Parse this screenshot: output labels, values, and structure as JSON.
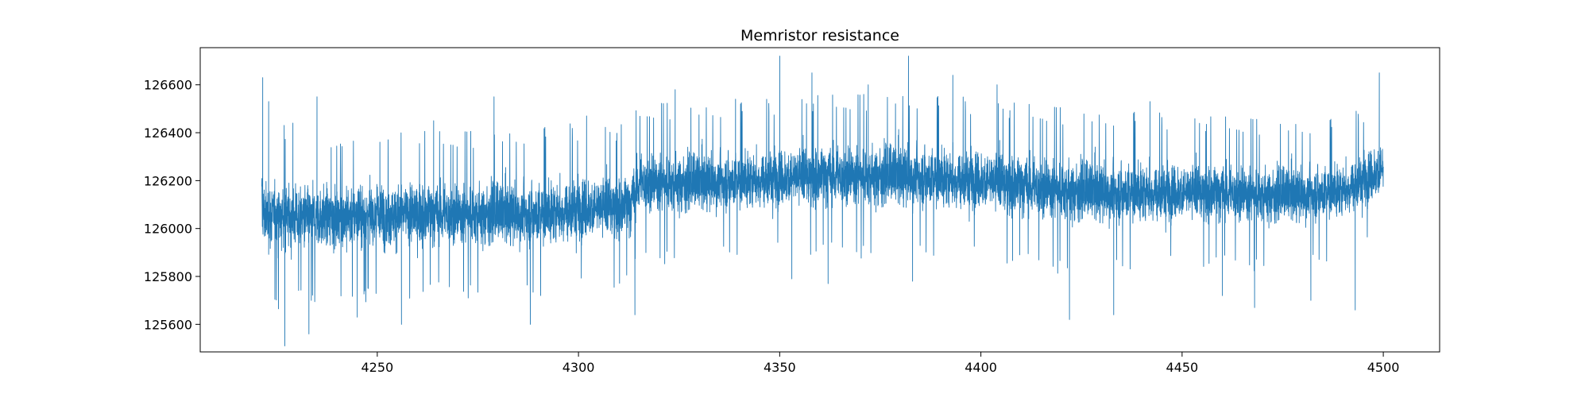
{
  "chart_data": {
    "type": "line",
    "title": "Memristor resistance",
    "xlabel": "",
    "ylabel": "",
    "xlim": [
      4206,
      4514
    ],
    "ylim": [
      125485,
      126755
    ],
    "x_ticks": [
      4250,
      4300,
      4350,
      4400,
      4450,
      4500
    ],
    "y_ticks": [
      125600,
      125800,
      126000,
      126200,
      126400,
      126600
    ],
    "grid": false,
    "legend": "none",
    "line_color": "#1f77b4",
    "series": [
      {
        "x_start": 4221.3,
        "x_end": 4500.0,
        "envelope_x": [
          4221.3,
          4222,
          4225,
          4230,
          4240,
          4250,
          4260,
          4270,
          4280,
          4290,
          4300,
          4310,
          4313,
          4315,
          4320,
          4330,
          4340,
          4350,
          4360,
          4370,
          4380,
          4390,
          4400,
          4410,
          4420,
          4430,
          4440,
          4450,
          4460,
          4470,
          4480,
          4490,
          4495,
          4500
        ],
        "envelope_upper": [
          126630,
          126480,
          126460,
          126400,
          126410,
          126420,
          126420,
          126410,
          126410,
          126420,
          126420,
          126410,
          126420,
          126520,
          126520,
          126530,
          126540,
          126560,
          126580,
          126570,
          126580,
          126560,
          126550,
          126530,
          126510,
          126500,
          126490,
          126470,
          126460,
          126450,
          126440,
          126470,
          126540,
          126620
        ],
        "envelope_lower": [
          125810,
          125750,
          125700,
          125720,
          125730,
          125720,
          125730,
          125730,
          125720,
          125710,
          125720,
          125730,
          125740,
          125870,
          125860,
          125880,
          125900,
          125910,
          125910,
          125900,
          125890,
          125890,
          125880,
          125850,
          125830,
          125830,
          125830,
          125840,
          125830,
          125830,
          125830,
          125880,
          125950,
          126000
        ],
        "mean": [
          126080,
          126060,
          126050,
          126050,
          126050,
          126060,
          126060,
          126060,
          126060,
          126060,
          126080,
          126090,
          126100,
          126190,
          126190,
          126190,
          126200,
          126210,
          126220,
          126220,
          126220,
          126210,
          126200,
          126180,
          126160,
          126150,
          126150,
          126150,
          126150,
          126140,
          126140,
          126160,
          126200,
          126250
        ],
        "spikes": [
          [
            4221.5,
            126630
          ],
          [
            4223,
            126530
          ],
          [
            4227,
            125510
          ],
          [
            4229,
            126440
          ],
          [
            4233,
            125560
          ],
          [
            4235,
            126550
          ],
          [
            4245,
            125630
          ],
          [
            4256,
            125600
          ],
          [
            4264,
            126450
          ],
          [
            4279,
            126550
          ],
          [
            4288,
            125600
          ],
          [
            4302,
            126470
          ],
          [
            4314,
            125640
          ],
          [
            4324,
            126580
          ],
          [
            4339,
            126540
          ],
          [
            4350,
            126720
          ],
          [
            4353,
            125790
          ],
          [
            4358,
            126650
          ],
          [
            4362,
            125770
          ],
          [
            4372,
            126600
          ],
          [
            4382,
            126720
          ],
          [
            4383,
            125780
          ],
          [
            4393,
            126640
          ],
          [
            4404,
            126600
          ],
          [
            4422,
            125620
          ],
          [
            4433,
            125640
          ],
          [
            4442,
            126530
          ],
          [
            4460,
            125720
          ],
          [
            4468,
            125670
          ],
          [
            4482,
            125700
          ],
          [
            4493,
            125660
          ],
          [
            4499,
            126650
          ]
        ]
      }
    ]
  }
}
